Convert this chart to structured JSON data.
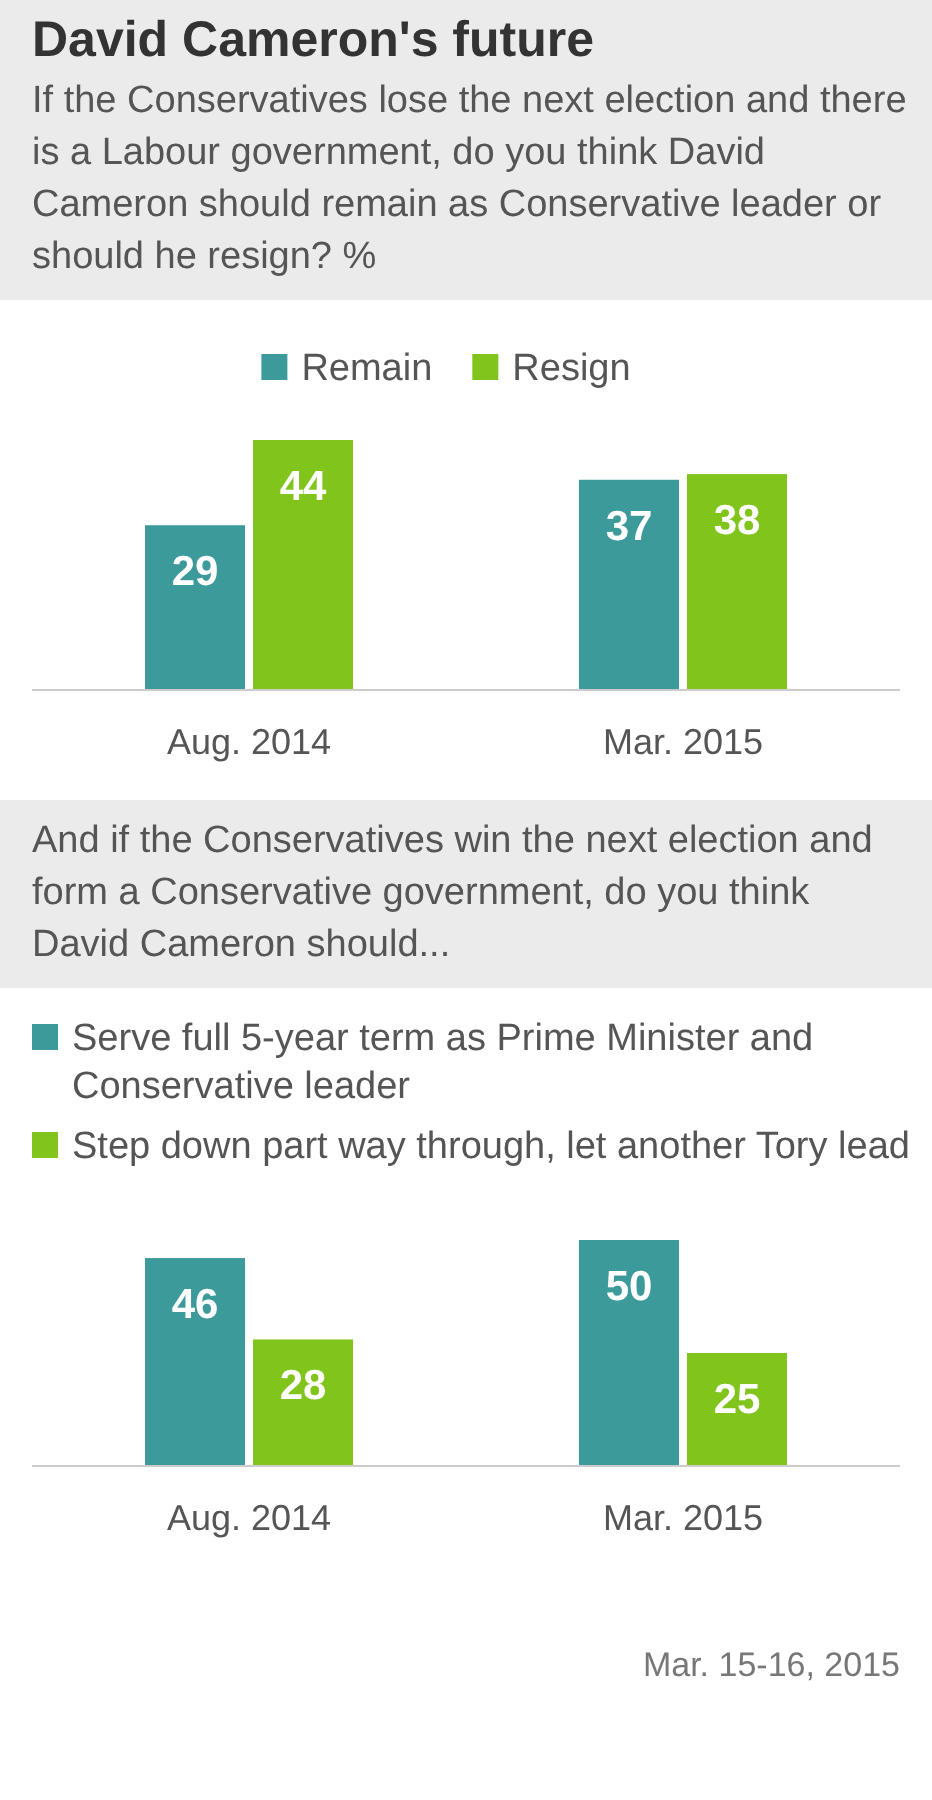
{
  "chart_data": [
    {
      "type": "bar",
      "title": "David Cameron's future",
      "subtitle": "If the Conservatives lose the next election and there is a Labour government, do you think David Cameron should remain as Conservative leader or should he resign? %",
      "categories": [
        "Aug. 2014",
        "Mar. 2015"
      ],
      "series": [
        {
          "name": "Remain",
          "color": "#3d9a9b",
          "values": [
            29,
            37
          ]
        },
        {
          "name": "Resign",
          "color": "#80c41c",
          "values": [
            44,
            38
          ]
        }
      ],
      "data_labels": true,
      "legend": "top"
    },
    {
      "type": "bar",
      "subtitle": "And if the Conservatives win the next election and form a Conservative government, do you think David Cameron should...",
      "categories": [
        "Aug. 2014",
        "Mar. 2015"
      ],
      "series": [
        {
          "name": "Serve full 5-year term as Prime Minister and Conservative leader",
          "color": "#3d9a9b",
          "values": [
            46,
            50
          ]
        },
        {
          "name": "Step down part way through, let another Tory lead",
          "color": "#80c41c",
          "values": [
            28,
            25
          ]
        }
      ],
      "data_labels": true,
      "legend": "top left",
      "annotations": [
        "Mar. 15-16, 2015"
      ]
    }
  ]
}
